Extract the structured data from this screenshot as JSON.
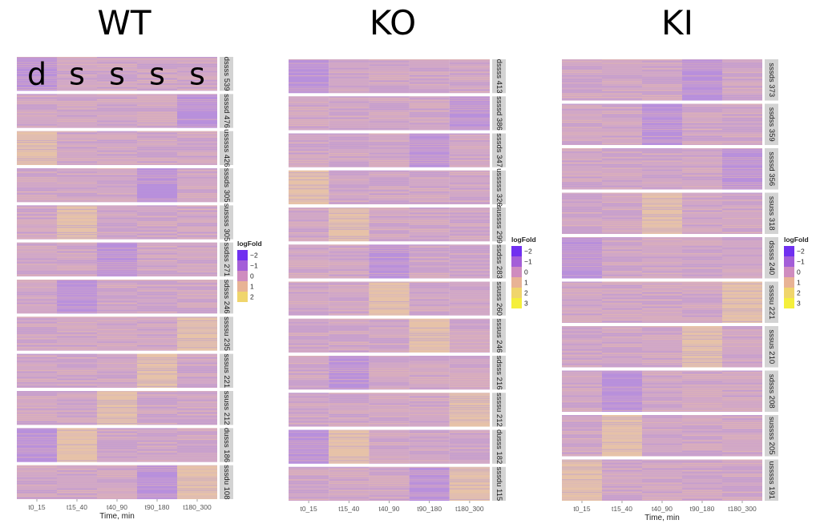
{
  "chart_data": [
    {
      "type": "heatmap",
      "title": "WT",
      "xlabel": "Time, min",
      "columns": [
        "t0_15",
        "t15_40",
        "t40_90",
        "t90_180",
        "t180_300"
      ],
      "overlay_letters": [
        "d",
        "s",
        "s",
        "s",
        "s"
      ],
      "legend": {
        "title": "logFold",
        "ticks": [
          "-2",
          "-1",
          "0",
          "1",
          "2"
        ]
      },
      "clusters": [
        {
          "label": "dssss 539",
          "profile": [
            -2,
            0,
            0,
            0,
            0
          ]
        },
        {
          "label": "ssssd 476",
          "profile": [
            0,
            0,
            0,
            0,
            -2
          ]
        },
        {
          "label": "usssss 426",
          "profile": [
            1,
            0,
            0,
            0,
            0
          ]
        },
        {
          "label": "sssds 305",
          "profile": [
            0,
            0,
            0,
            -2,
            0
          ]
        },
        {
          "label": "sussss 305",
          "profile": [
            0,
            1,
            0,
            0,
            0
          ]
        },
        {
          "label": "ssdss 271",
          "profile": [
            0,
            0,
            -2,
            0,
            0
          ]
        },
        {
          "label": "sdsss 246",
          "profile": [
            0,
            -2,
            0,
            0,
            0
          ]
        },
        {
          "label": "ssssu 235",
          "profile": [
            0,
            0,
            0,
            0,
            1
          ]
        },
        {
          "label": "sssus 221",
          "profile": [
            0,
            0,
            0,
            1,
            0
          ]
        },
        {
          "label": "ssuss 212",
          "profile": [
            0,
            0,
            1,
            0,
            0
          ]
        },
        {
          "label": "dusss 186",
          "profile": [
            -2,
            1,
            0,
            0,
            0
          ]
        },
        {
          "label": "sssdu 108",
          "profile": [
            0,
            0,
            0,
            -2,
            1
          ]
        }
      ]
    },
    {
      "type": "heatmap",
      "title": "KO",
      "xlabel": "",
      "columns": [
        "t0_15",
        "t15_40",
        "t40_90",
        "t90_180",
        "t180_300"
      ],
      "legend": {
        "title": "logFold",
        "ticks": [
          "-2",
          "-1",
          "0",
          "1",
          "2",
          "3"
        ]
      },
      "clusters": [
        {
          "label": "dssss 413",
          "profile": [
            -2,
            0,
            0,
            0,
            0
          ]
        },
        {
          "label": "ssssd 386",
          "profile": [
            0,
            0,
            0,
            0,
            -2
          ]
        },
        {
          "label": "sssds 347",
          "profile": [
            0,
            0,
            0,
            -2,
            0
          ]
        },
        {
          "label": "usssss 326",
          "profile": [
            1,
            0,
            0,
            0,
            0
          ]
        },
        {
          "label": "sussss 299",
          "profile": [
            0,
            1,
            0,
            0,
            0
          ]
        },
        {
          "label": "ssdss 283",
          "profile": [
            0,
            0,
            -2,
            0,
            0
          ]
        },
        {
          "label": "ssuss 260",
          "profile": [
            0,
            0,
            1,
            0,
            0
          ]
        },
        {
          "label": "sssus 246",
          "profile": [
            0,
            0,
            0,
            1,
            0
          ]
        },
        {
          "label": "sdsss 216",
          "profile": [
            0,
            -2,
            0,
            0,
            0
          ]
        },
        {
          "label": "ssssu 212",
          "profile": [
            0,
            0,
            0,
            0,
            1
          ]
        },
        {
          "label": "dusss 182",
          "profile": [
            -2,
            1,
            0,
            0,
            0
          ]
        },
        {
          "label": "sssdu 115",
          "profile": [
            0,
            0,
            0,
            -2,
            1
          ]
        }
      ]
    },
    {
      "type": "heatmap",
      "title": "KI",
      "xlabel": "Time, min",
      "columns": [
        "t0_15",
        "t15_40",
        "t40_90",
        "t90_180",
        "t180_300"
      ],
      "legend": {
        "title": "logFold",
        "ticks": [
          "-2",
          "-1",
          "0",
          "1",
          "2",
          "3"
        ]
      },
      "clusters": [
        {
          "label": "sssds 373",
          "profile": [
            0,
            0,
            0,
            -2,
            0
          ]
        },
        {
          "label": "ssdss 359",
          "profile": [
            0,
            0,
            -2,
            0,
            0
          ]
        },
        {
          "label": "ssssd 356",
          "profile": [
            0,
            0,
            0,
            0,
            -2
          ]
        },
        {
          "label": "ssuss 318",
          "profile": [
            0,
            0,
            1,
            0,
            0
          ]
        },
        {
          "label": "dssss 240",
          "profile": [
            -2,
            0,
            0,
            0,
            0
          ]
        },
        {
          "label": "ssssu 221",
          "profile": [
            0,
            0,
            0,
            0,
            1
          ]
        },
        {
          "label": "sssus 210",
          "profile": [
            0,
            0,
            0,
            1,
            0
          ]
        },
        {
          "label": "sdsss 208",
          "profile": [
            0,
            -2,
            0,
            0,
            0
          ]
        },
        {
          "label": "sussss 205",
          "profile": [
            0,
            1,
            0,
            0,
            0
          ]
        },
        {
          "label": "usssss 191",
          "profile": [
            1,
            0,
            0,
            0,
            0
          ]
        }
      ]
    }
  ]
}
